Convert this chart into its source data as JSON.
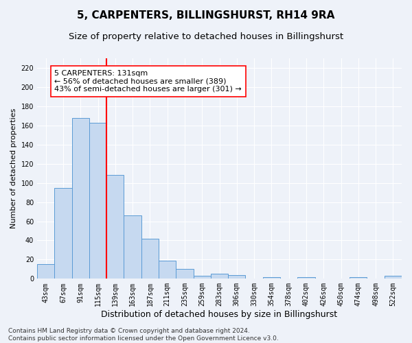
{
  "title": "5, CARPENTERS, BILLINGSHURST, RH14 9RA",
  "subtitle": "Size of property relative to detached houses in Billingshurst",
  "xlabel": "Distribution of detached houses by size in Billingshurst",
  "ylabel": "Number of detached properties",
  "categories": [
    "43sqm",
    "67sqm",
    "91sqm",
    "115sqm",
    "139sqm",
    "163sqm",
    "187sqm",
    "211sqm",
    "235sqm",
    "259sqm",
    "283sqm",
    "306sqm",
    "330sqm",
    "354sqm",
    "378sqm",
    "402sqm",
    "426sqm",
    "450sqm",
    "474sqm",
    "498sqm",
    "522sqm"
  ],
  "values": [
    15,
    95,
    168,
    163,
    108,
    66,
    42,
    19,
    10,
    3,
    5,
    4,
    0,
    2,
    0,
    2,
    0,
    0,
    2,
    0,
    3
  ],
  "bar_color": "#c6d9f0",
  "bar_edge_color": "#5b9bd5",
  "vline_index": 3.5,
  "vline_color": "red",
  "annotation_text": "5 CARPENTERS: 131sqm\n← 56% of detached houses are smaller (389)\n43% of semi-detached houses are larger (301) →",
  "annotation_box_color": "white",
  "annotation_box_edge": "red",
  "ylim": [
    0,
    230
  ],
  "yticks": [
    0,
    20,
    40,
    60,
    80,
    100,
    120,
    140,
    160,
    180,
    200,
    220
  ],
  "footer": "Contains HM Land Registry data © Crown copyright and database right 2024.\nContains public sector information licensed under the Open Government Licence v3.0.",
  "background_color": "#eef2f9",
  "grid_color": "#ffffff",
  "title_fontsize": 11,
  "subtitle_fontsize": 9.5,
  "xlabel_fontsize": 9,
  "ylabel_fontsize": 8,
  "tick_fontsize": 7,
  "footer_fontsize": 6.5,
  "annotation_fontsize": 8
}
